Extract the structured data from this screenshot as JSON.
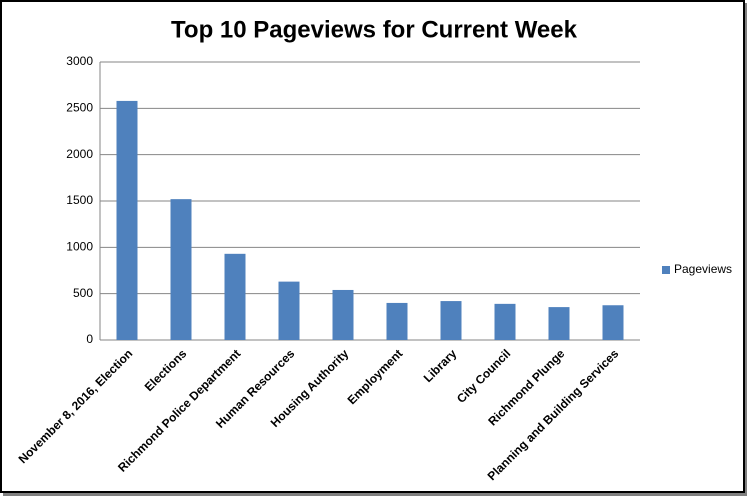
{
  "chart_data": {
    "type": "bar",
    "title": "Top 10 Pageviews for Current Week",
    "categories": [
      "November 8, 2016, Election",
      "Elections",
      "Richmond Police Department",
      "Human Resources",
      "Housing Authority",
      "Employment",
      "Library",
      "City Council",
      "Richmond Plunge",
      "Planning and Building Services"
    ],
    "series": [
      {
        "name": "Pageviews",
        "color": "#4f81bd",
        "values": [
          2580,
          1520,
          930,
          630,
          540,
          400,
          420,
          390,
          355,
          375
        ]
      }
    ],
    "ylim": [
      0,
      3000
    ],
    "yticks": [
      0,
      500,
      1000,
      1500,
      2000,
      2500,
      3000
    ],
    "grid": true,
    "legend": "right"
  }
}
